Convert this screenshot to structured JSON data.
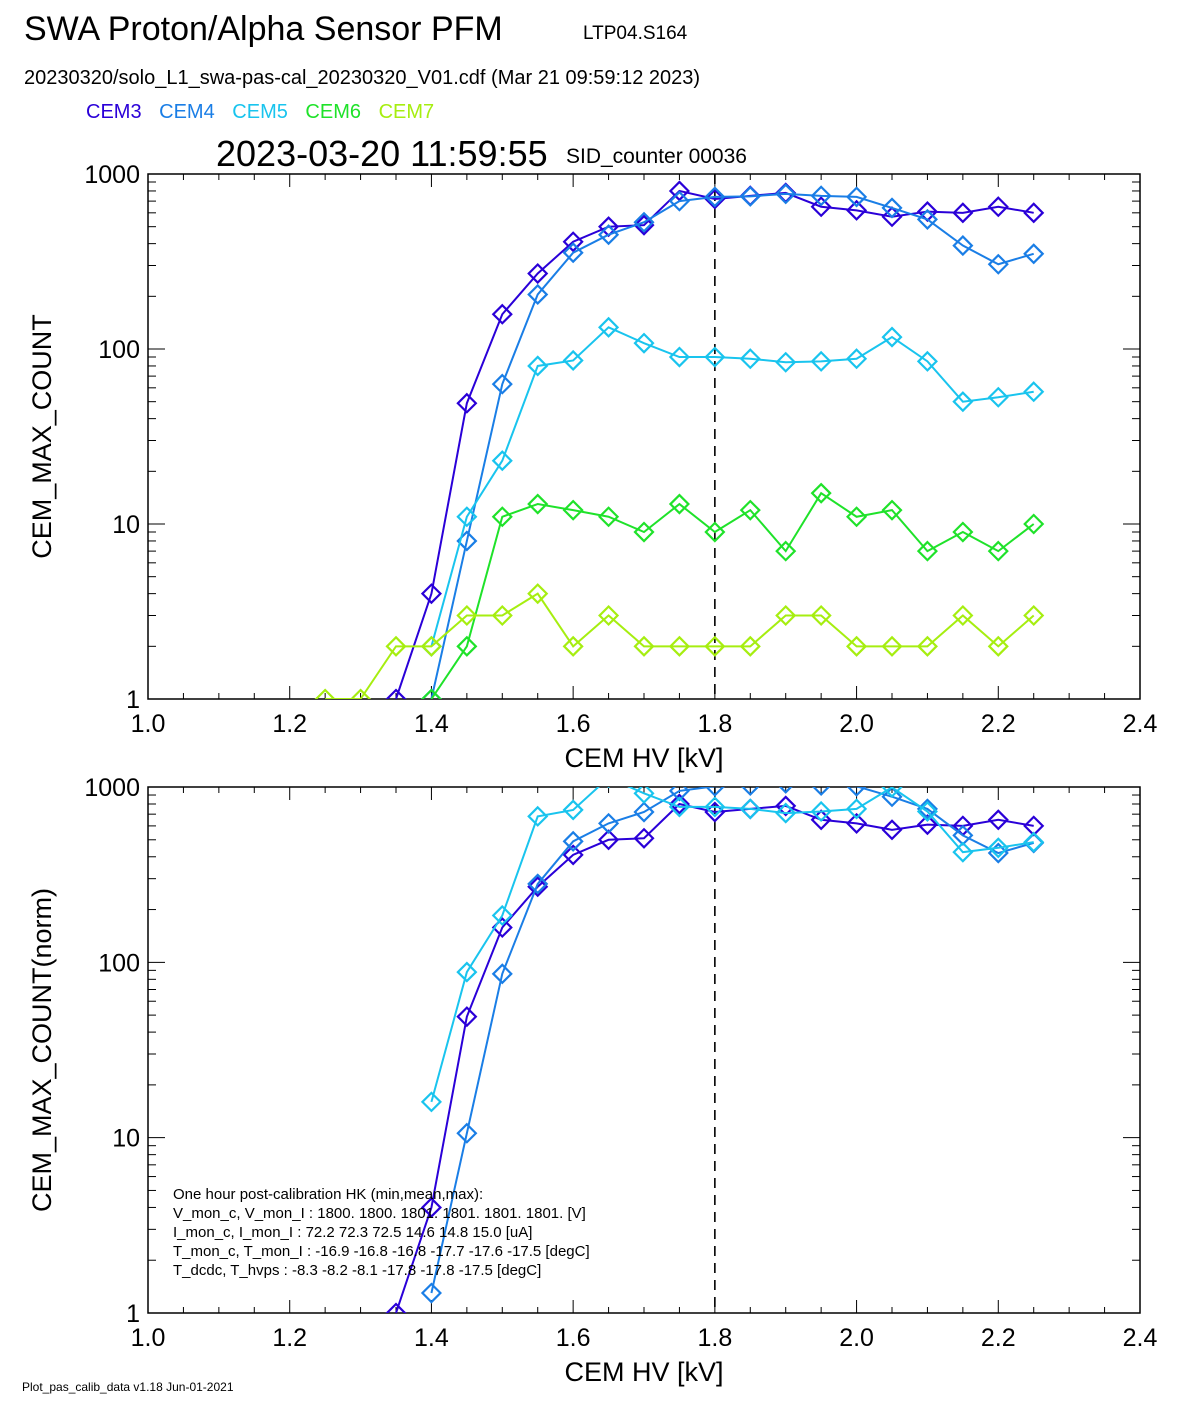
{
  "header": {
    "title": "SWA Proton/Alpha Sensor PFM",
    "sensor_id": "LTP04.S164",
    "file_line": "20230320/solo_L1_swa-pas-cal_20230320_V01.cdf  (Mar 21 09:59:12 2023)",
    "timestamp": "2023-03-20 11:59:55",
    "sid_counter": "SID_counter 00036"
  },
  "legend": [
    {
      "label": "CEM3",
      "color": "#2a00d8"
    },
    {
      "label": "CEM4",
      "color": "#1a7ee6"
    },
    {
      "label": "CEM5",
      "color": "#19c4ee"
    },
    {
      "label": "CEM6",
      "color": "#1fe22a"
    },
    {
      "label": "CEM7",
      "color": "#a6ee10"
    }
  ],
  "footer": "Plot_pas_calib_data v1.18 Jun-01-2021",
  "hk_box": {
    "lines": [
      "One hour post-calibration HK (min,mean,max):",
      "V_mon_c, V_mon_I :    1800.   1800.  1801.        1801.  1801.  1801.  [V]",
      "I_mon_c,  I_mon_I :     72.2    72.3   72.5         14.6   14.8   15.0  [uA]",
      "T_mon_c, T_mon_I :   -16.9  -16.8   -16.8         -17.7  -17.6  -17.5  [degC]",
      "T_dcdc,    T_hvps :      -8.3    -8.2   -8.1         -17.8  -17.8  -17.5  [degC]"
    ]
  },
  "chart_data": [
    {
      "type": "line",
      "ylabel": "CEM_MAX_COUNT",
      "xlabel": "CEM HV [kV]",
      "xlim": [
        1.0,
        2.4
      ],
      "ylim": [
        1,
        1000
      ],
      "yscale": "log",
      "xticks": [
        "1.0",
        "1.2",
        "1.4",
        "1.6",
        "1.8",
        "2.0",
        "2.2",
        "2.4"
      ],
      "yticks": [
        "1",
        "10",
        "100",
        "1000"
      ],
      "marker": "diamond",
      "vline_x": 1.8,
      "series": [
        {
          "name": "CEM3",
          "color": "#2a00d8",
          "x": [
            1.35,
            1.4,
            1.45,
            1.5,
            1.55,
            1.6,
            1.65,
            1.7,
            1.75,
            1.8,
            1.85,
            1.9,
            1.95,
            2.0,
            2.05,
            2.1,
            2.15,
            2.2,
            2.25
          ],
          "y": [
            1,
            4,
            49,
            158,
            270,
            410,
            500,
            510,
            800,
            720,
            750,
            780,
            650,
            620,
            570,
            610,
            600,
            650,
            600
          ]
        },
        {
          "name": "CEM4",
          "color": "#1a7ee6",
          "x": [
            1.4,
            1.45,
            1.5,
            1.55,
            1.6,
            1.65,
            1.7,
            1.75,
            1.8,
            1.85,
            1.9,
            1.95,
            2.0,
            2.05,
            2.1,
            2.15,
            2.2,
            2.25
          ],
          "y": [
            1,
            8,
            63,
            205,
            355,
            450,
            530,
            700,
            740,
            745,
            770,
            750,
            740,
            640,
            550,
            390,
            305,
            350
          ]
        },
        {
          "name": "CEM5",
          "color": "#19c4ee",
          "x": [
            1.4,
            1.45,
            1.5,
            1.55,
            1.6,
            1.65,
            1.7,
            1.75,
            1.8,
            1.85,
            1.9,
            1.95,
            2.0,
            2.05,
            2.1,
            2.15,
            2.2,
            2.25
          ],
          "y": [
            2,
            11,
            23,
            80,
            86,
            133,
            108,
            90,
            90,
            88,
            84,
            85,
            88,
            117,
            85,
            50,
            53,
            57
          ]
        },
        {
          "name": "CEM6",
          "color": "#1fe22a",
          "x": [
            1.4,
            1.45,
            1.5,
            1.55,
            1.6,
            1.65,
            1.7,
            1.75,
            1.8,
            1.85,
            1.9,
            1.95,
            2.0,
            2.05,
            2.1,
            2.15,
            2.2,
            2.25
          ],
          "y": [
            1,
            2,
            11,
            13,
            12,
            11,
            9,
            13,
            9,
            12,
            7,
            15,
            11,
            12,
            7,
            9,
            7,
            10
          ]
        },
        {
          "name": "CEM7",
          "color": "#a6ee10",
          "x": [
            1.25,
            1.3,
            1.35,
            1.4,
            1.45,
            1.5,
            1.55,
            1.6,
            1.65,
            1.7,
            1.75,
            1.8,
            1.85,
            1.9,
            1.95,
            2.0,
            2.05,
            2.1,
            2.15,
            2.2,
            2.25
          ],
          "y": [
            1,
            1,
            2,
            2,
            3,
            3,
            4,
            2,
            3,
            2,
            2,
            2,
            2,
            3,
            3,
            2,
            2,
            2,
            3,
            2,
            3
          ]
        }
      ]
    },
    {
      "type": "line",
      "ylabel": "CEM_MAX_COUNT(norm)",
      "xlabel": "CEM HV [kV]",
      "xlim": [
        1.0,
        2.4
      ],
      "ylim": [
        1,
        1000
      ],
      "yscale": "log",
      "xticks": [
        "1.0",
        "1.2",
        "1.4",
        "1.6",
        "1.8",
        "2.0",
        "2.2",
        "2.4"
      ],
      "yticks": [
        "1",
        "10",
        "100",
        "1000"
      ],
      "marker": "diamond",
      "vline_x": 1.8,
      "series": [
        {
          "name": "CEM3",
          "color": "#2a00d8",
          "x": [
            1.35,
            1.4,
            1.45,
            1.5,
            1.55,
            1.6,
            1.65,
            1.7,
            1.75,
            1.8,
            1.85,
            1.9,
            1.95,
            2.0,
            2.05,
            2.1,
            2.15,
            2.2,
            2.25
          ],
          "y": [
            1,
            4,
            49,
            158,
            270,
            410,
            500,
            510,
            800,
            720,
            750,
            780,
            650,
            620,
            570,
            610,
            600,
            650,
            600
          ]
        },
        {
          "name": "CEM4",
          "color": "#1a7ee6",
          "x": [
            1.4,
            1.45,
            1.5,
            1.55,
            1.6,
            1.65,
            1.7,
            1.75,
            1.8,
            1.85,
            1.9,
            1.95,
            2.0,
            2.05,
            2.1,
            2.15,
            2.2,
            2.25
          ],
          "y": [
            1.3,
            10.6,
            86,
            280,
            490,
            620,
            720,
            950,
            1010,
            1020,
            1050,
            1020,
            1010,
            880,
            750,
            530,
            420,
            480
          ]
        },
        {
          "name": "CEM5",
          "color": "#19c4ee",
          "x": [
            1.4,
            1.45,
            1.5,
            1.55,
            1.6,
            1.65,
            1.7,
            1.75,
            1.8,
            1.85,
            1.9,
            1.95,
            2.0,
            2.05,
            2.1,
            2.15,
            2.2,
            2.25
          ],
          "y": [
            16,
            88,
            185,
            680,
            740,
            1130,
            920,
            770,
            770,
            750,
            710,
            725,
            750,
            995,
            725,
            425,
            450,
            485
          ]
        }
      ]
    }
  ]
}
